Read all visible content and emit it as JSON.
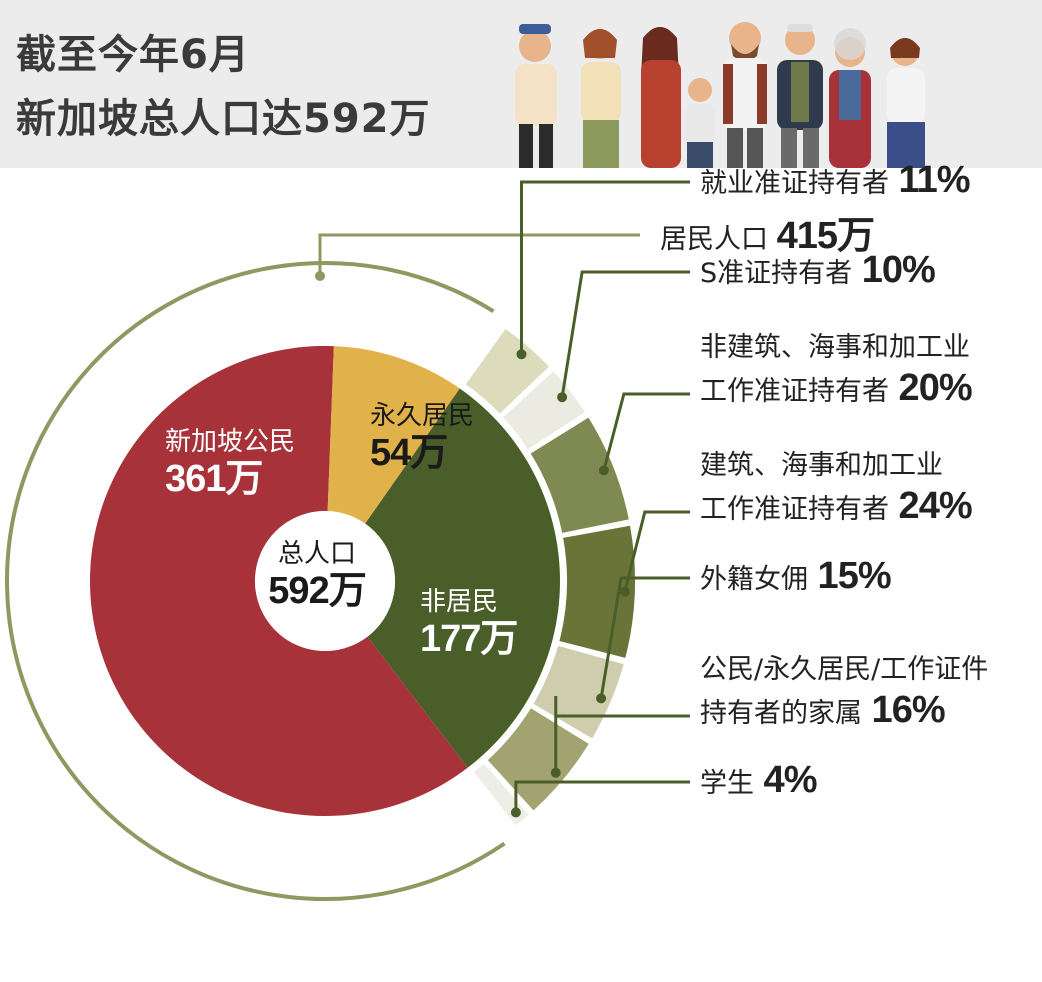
{
  "header": {
    "line1": "截至今年6月",
    "line2": "新加坡总人口达592万"
  },
  "colors": {
    "citizen": "#a8323a",
    "pr": "#e2b24a",
    "nonresident": "#4a5e2a",
    "ring": "#8c9a62",
    "leader": "#4a5e2a"
  },
  "chart_data": {
    "type": "pie",
    "inner": {
      "slices": [
        {
          "label": "新加坡公民",
          "value_text": "361万",
          "value": 361
        },
        {
          "label": "永久居民",
          "value_text": "54万",
          "value": 54
        },
        {
          "label": "非居民",
          "value_text": "177万",
          "value": 177
        }
      ],
      "center_label": "总人口",
      "center_value": "592万"
    },
    "resident": {
      "label": "居民人口",
      "value_text": "415万",
      "value": 415
    },
    "nonresident_breakdown": [
      {
        "label_lines": [
          "就业准证持有者"
        ],
        "pct_text": "11%",
        "pct": 11,
        "color": "#dcdcbc"
      },
      {
        "label_lines": [
          "S准证持有者"
        ],
        "pct_text": "10%",
        "pct": 10,
        "color": "#ebebe2"
      },
      {
        "label_lines": [
          "非建筑、海事和加工业",
          "工作准证持有者"
        ],
        "pct_text": "20%",
        "pct": 20,
        "color": "#7f8a52"
      },
      {
        "label_lines": [
          "建筑、海事和加工业",
          "工作准证持有者"
        ],
        "pct_text": "24%",
        "pct": 24,
        "color": "#6a7338"
      },
      {
        "label_lines": [
          "外籍女佣"
        ],
        "pct_text": "15%",
        "pct": 15,
        "color": "#cfcdae"
      },
      {
        "label_lines": [
          "公民/永久居民/工作证件",
          "持有者的家属"
        ],
        "pct_text": "16%",
        "pct": 16,
        "color": "#a3a371"
      },
      {
        "label_lines": [
          "学生"
        ],
        "pct_text": "4%",
        "pct": 4,
        "color": "#eeeee6"
      }
    ]
  }
}
